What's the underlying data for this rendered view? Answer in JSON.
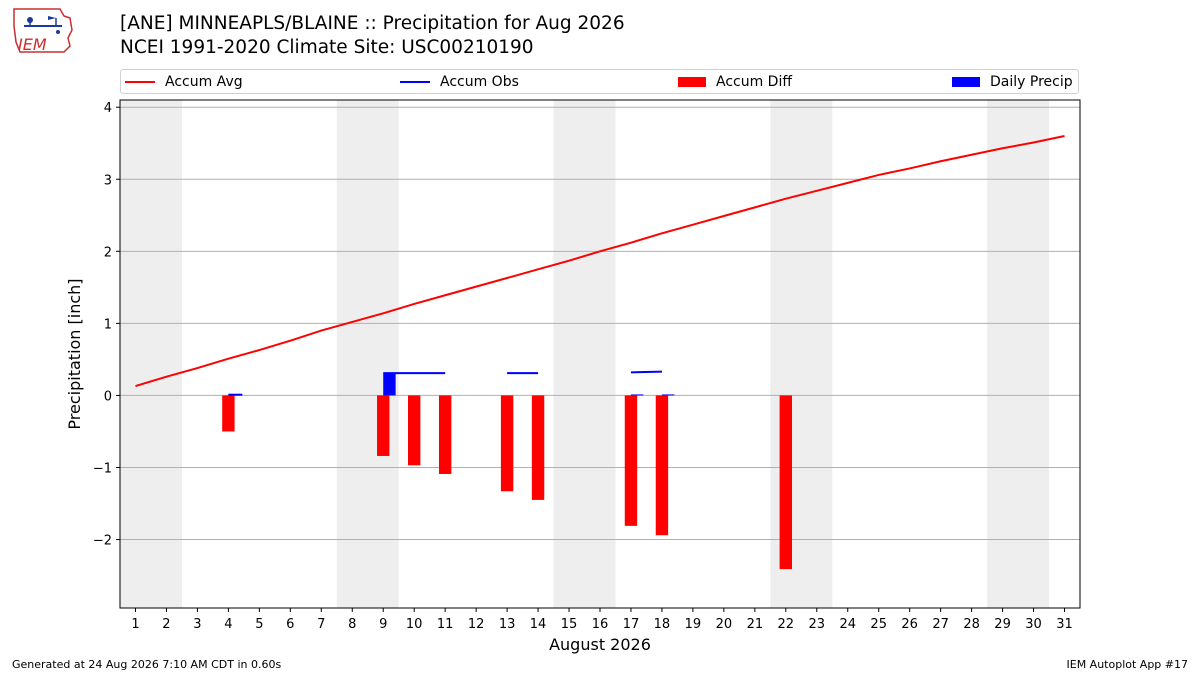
{
  "header": {
    "title_line1": "[ANE] MINNEAPLS/BLAINE :: Precipitation for Aug 2026",
    "title_line2": "NCEI 1991-2020 Climate Site: USC00210190"
  },
  "logo": {
    "text": "IEM"
  },
  "legend": {
    "accum_avg": "Accum Avg",
    "accum_obs": "Accum Obs",
    "accum_diff": "Accum Diff",
    "daily_precip": "Daily Precip"
  },
  "footer": {
    "left": "Generated at 24 Aug 2026 7:10 AM CDT in 0.60s",
    "right": "IEM Autoplot App #17"
  },
  "colors": {
    "accum_avg": "#ff0000",
    "accum_obs": "#0000ff",
    "accum_diff": "#ff0000",
    "daily_precip": "#0000ff",
    "weekend_shade": "#eeeeee",
    "grid": "#b0b0b0"
  },
  "chart_data": {
    "type": "bar",
    "xlabel": "August 2026",
    "ylabel": "Precipitation [inch]",
    "xlim": [
      0.5,
      31.5
    ],
    "ylim": [
      -2.95,
      4.1
    ],
    "x_ticks": [
      1,
      2,
      3,
      4,
      5,
      6,
      7,
      8,
      9,
      10,
      11,
      12,
      13,
      14,
      15,
      16,
      17,
      18,
      19,
      20,
      21,
      22,
      23,
      24,
      25,
      26,
      27,
      28,
      29,
      30,
      31
    ],
    "y_ticks": [
      -2,
      -1,
      0,
      1,
      2,
      3,
      4
    ],
    "y_tick_labels": [
      "−2",
      "−1",
      "0",
      "1",
      "2",
      "3",
      "4"
    ],
    "grid": "horizontal",
    "legend_position": "top",
    "weekend_shading": [
      [
        1,
        2
      ],
      [
        8,
        9
      ],
      [
        15,
        16
      ],
      [
        22,
        23
      ],
      [
        29,
        30
      ]
    ],
    "accum_avg": {
      "name": "Accum Avg",
      "x": [
        1,
        2,
        3,
        4,
        5,
        6,
        7,
        8,
        9,
        10,
        11,
        12,
        13,
        14,
        15,
        16,
        17,
        18,
        19,
        20,
        21,
        22,
        23,
        24,
        25,
        26,
        27,
        28,
        29,
        30,
        31
      ],
      "values": [
        0.13,
        0.26,
        0.38,
        0.51,
        0.63,
        0.76,
        0.9,
        1.02,
        1.14,
        1.27,
        1.39,
        1.51,
        1.63,
        1.75,
        1.87,
        2.0,
        2.12,
        2.25,
        2.37,
        2.49,
        2.61,
        2.73,
        2.84,
        2.95,
        3.06,
        3.15,
        3.25,
        3.34,
        3.43,
        3.51,
        3.6
      ]
    },
    "accum_obs": {
      "name": "Accum Obs",
      "segments": [
        {
          "x": [
            4,
            4.45
          ],
          "y": [
            0.01,
            0.01
          ]
        },
        {
          "x": [
            9,
            11
          ],
          "y": [
            0.31,
            0.31
          ]
        },
        {
          "x": [
            13,
            14
          ],
          "y": [
            0.31,
            0.31
          ]
        },
        {
          "x": [
            17,
            18
          ],
          "y": [
            0.32,
            0.33
          ]
        }
      ]
    },
    "accum_diff": {
      "name": "Accum Diff",
      "x": [
        4,
        9,
        10,
        11,
        13,
        14,
        17,
        18,
        22
      ],
      "values": [
        -0.5,
        -0.84,
        -0.97,
        -1.09,
        -1.33,
        -1.45,
        -1.81,
        -1.94,
        -2.41
      ]
    },
    "daily_precip": {
      "name": "Daily Precip",
      "x": [
        4,
        9,
        17,
        18
      ],
      "values": [
        0.01,
        0.3,
        0.01,
        0.01
      ]
    }
  }
}
